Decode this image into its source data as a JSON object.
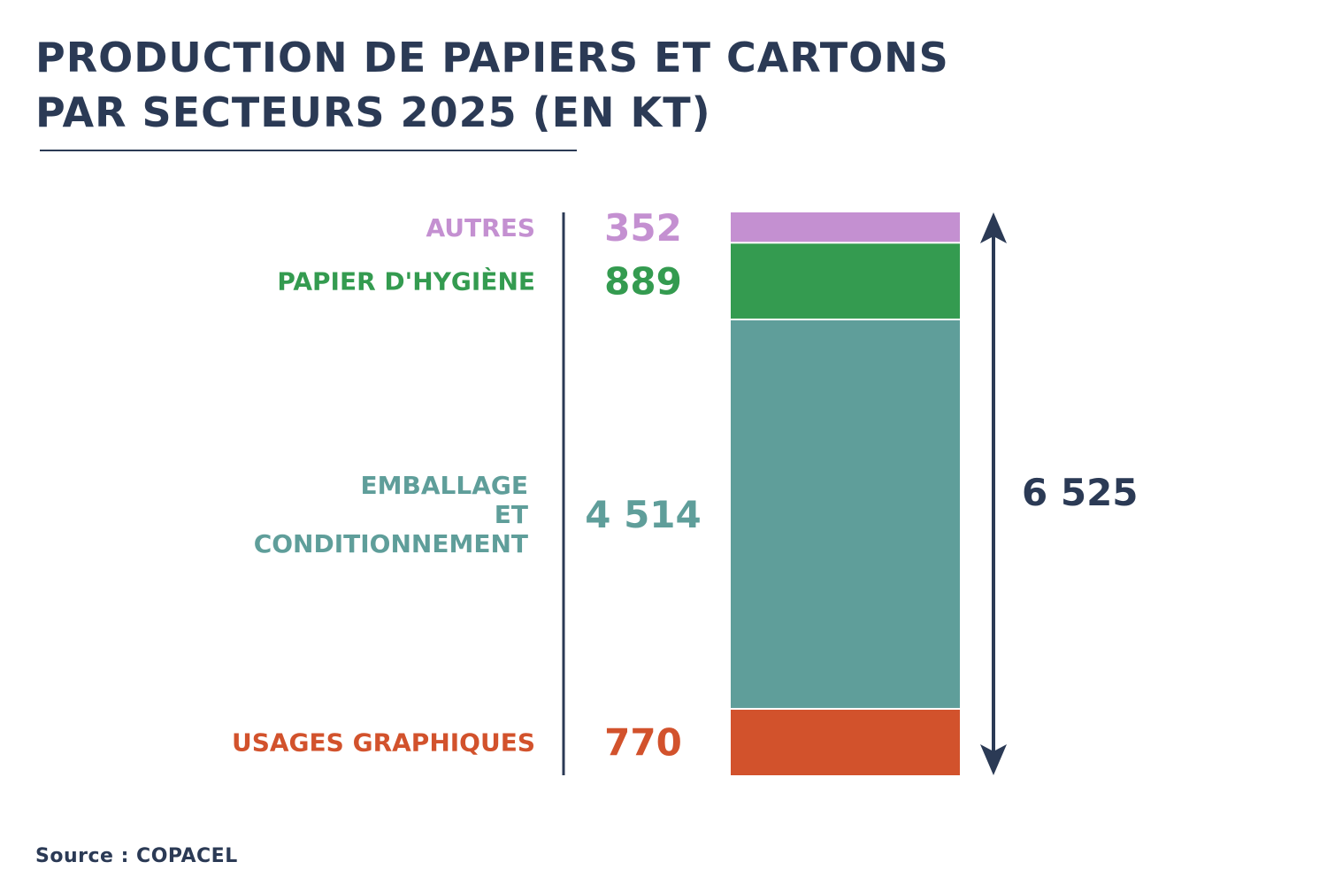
{
  "title_line1": "PRODUCTION DE PAPIERS ET CARTONS",
  "title_line2": "PAR SECTEURS 2025 (EN KT)",
  "source": "Source : COPACEL",
  "colors": {
    "text": "#2b3a55",
    "autres": "#c490d1",
    "hygiene": "#349b50",
    "emballage": "#5f9e9a",
    "graphiques": "#d2522c"
  },
  "chart_data": {
    "type": "bar",
    "stacked": true,
    "title": "PRODUCTION DE PAPIERS ET CARTONS PAR SECTEURS 2025 (EN KT)",
    "unit": "KT",
    "series": [
      {
        "name": "USAGES GRAPHIQUES",
        "value": 770,
        "value_label": "770",
        "label_lines": [
          "USAGES GRAPHIQUES"
        ],
        "color": "#d2522c"
      },
      {
        "name": "EMBALLAGE ET CONDITIONNEMENT",
        "value": 4514,
        "value_label": "4 514",
        "label_lines": [
          "EMBALLAGE",
          "ET",
          "CONDITIONNEMENT"
        ],
        "color": "#5f9e9a"
      },
      {
        "name": "PAPIER D'HYGIÈNE",
        "value": 889,
        "value_label": "889",
        "label_lines": [
          "PAPIER D'HYGIÈNE"
        ],
        "color": "#349b50"
      },
      {
        "name": "AUTRES",
        "value": 352,
        "value_label": "352",
        "label_lines": [
          "AUTRES"
        ],
        "color": "#c490d1"
      }
    ],
    "total": 6525,
    "total_label": "6 525"
  }
}
